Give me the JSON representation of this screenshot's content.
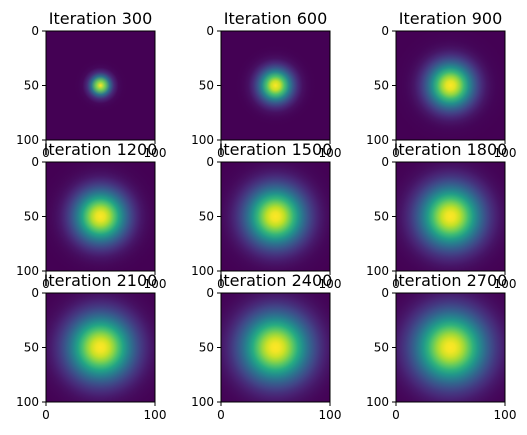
{
  "chart_data": [
    {
      "type": "heatmap",
      "title": "Iteration 300",
      "iteration": 300,
      "xticks": [
        "0",
        "100"
      ],
      "yticks": [
        "0",
        "50",
        "100"
      ],
      "xlim": [
        0,
        100
      ],
      "ylim": [
        100,
        0
      ],
      "colormap": "viridis",
      "center": [
        50,
        50
      ],
      "spread": 0.06,
      "peak": 1.0,
      "vmin": 0.0
    },
    {
      "type": "heatmap",
      "title": "Iteration 600",
      "iteration": 600,
      "xticks": [
        "0",
        "100"
      ],
      "yticks": [
        "0",
        "50",
        "100"
      ],
      "xlim": [
        0,
        100
      ],
      "ylim": [
        100,
        0
      ],
      "colormap": "viridis",
      "center": [
        50,
        50
      ],
      "spread": 0.1,
      "peak": 1.0,
      "vmin": 0.0
    },
    {
      "type": "heatmap",
      "title": "Iteration 900",
      "iteration": 900,
      "xticks": [
        "0",
        "100"
      ],
      "yticks": [
        "0",
        "50",
        "100"
      ],
      "xlim": [
        0,
        100
      ],
      "ylim": [
        100,
        0
      ],
      "colormap": "viridis",
      "center": [
        50,
        50
      ],
      "spread": 0.14,
      "peak": 1.0,
      "vmin": 0.0
    },
    {
      "type": "heatmap",
      "title": "Iteration 1200",
      "iteration": 1200,
      "xticks": [
        "0",
        "100"
      ],
      "yticks": [
        "0",
        "50",
        "100"
      ],
      "xlim": [
        0,
        100
      ],
      "ylim": [
        100,
        0
      ],
      "colormap": "viridis",
      "center": [
        50,
        50
      ],
      "spread": 0.16,
      "peak": 1.0,
      "vmin": 0.0
    },
    {
      "type": "heatmap",
      "title": "Iteration 1500",
      "iteration": 1500,
      "xticks": [
        "0",
        "100"
      ],
      "yticks": [
        "0",
        "50",
        "100"
      ],
      "xlim": [
        0,
        100
      ],
      "ylim": [
        100,
        0
      ],
      "colormap": "viridis",
      "center": [
        50,
        50
      ],
      "spread": 0.18,
      "peak": 1.0,
      "vmin": 0.0
    },
    {
      "type": "heatmap",
      "title": "Iteration 1800",
      "iteration": 1800,
      "xticks": [
        "0",
        "100"
      ],
      "yticks": [
        "0",
        "50",
        "100"
      ],
      "xlim": [
        0,
        100
      ],
      "ylim": [
        100,
        0
      ],
      "colormap": "viridis",
      "center": [
        50,
        50
      ],
      "spread": 0.19,
      "peak": 1.0,
      "vmin": 0.0
    },
    {
      "type": "heatmap",
      "title": "Iteration 2100",
      "iteration": 2100,
      "xticks": [
        "0",
        "100"
      ],
      "yticks": [
        "0",
        "50",
        "100"
      ],
      "xlim": [
        0,
        100
      ],
      "ylim": [
        100,
        0
      ],
      "colormap": "viridis",
      "center": [
        50,
        50
      ],
      "spread": 0.2,
      "peak": 1.0,
      "vmin": 0.0
    },
    {
      "type": "heatmap",
      "title": "Iteration 2400",
      "iteration": 2400,
      "xticks": [
        "0",
        "100"
      ],
      "yticks": [
        "0",
        "50",
        "100"
      ],
      "xlim": [
        0,
        100
      ],
      "ylim": [
        100,
        0
      ],
      "colormap": "viridis",
      "center": [
        50,
        50
      ],
      "spread": 0.21,
      "peak": 1.0,
      "vmin": 0.0
    },
    {
      "type": "heatmap",
      "title": "Iteration 2700",
      "iteration": 2700,
      "xticks": [
        "0",
        "100"
      ],
      "yticks": [
        "0",
        "50",
        "100"
      ],
      "xlim": [
        0,
        100
      ],
      "ylim": [
        100,
        0
      ],
      "colormap": "viridis",
      "center": [
        50,
        50
      ],
      "spread": 0.22,
      "peak": 1.0,
      "vmin": 0.0
    }
  ]
}
